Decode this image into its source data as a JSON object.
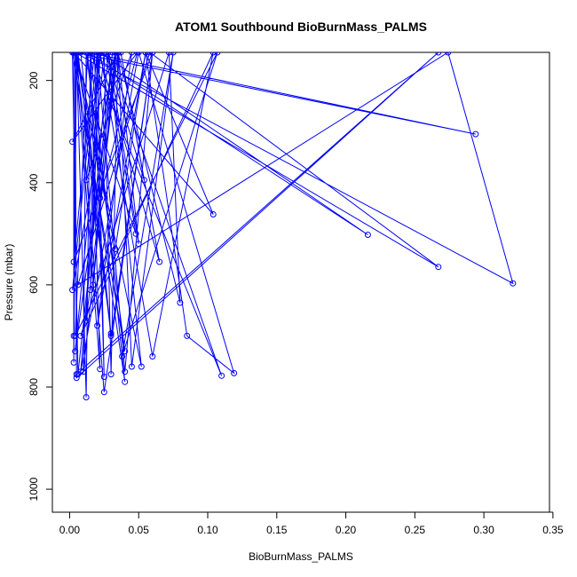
{
  "chart_data": {
    "type": "line",
    "title": "ATOM1 Southbound BioBurnMass_PALMS",
    "xlabel": "BioBurnMass_PALMS",
    "ylabel": "Pressure (mbar)",
    "xlim": [
      -0.0125,
      0.3475
    ],
    "ylim": [
      1045,
      145
    ],
    "y_reversed": true,
    "grid": false,
    "legend": "none",
    "x_ticks": [
      0.0,
      0.05,
      0.1,
      0.15,
      0.2,
      0.25,
      0.3,
      0.35
    ],
    "x_tick_labels": [
      "0.00",
      "0.05",
      "0.10",
      "0.15",
      "0.20",
      "0.25",
      "0.30",
      "0.35"
    ],
    "y_ticks": [
      200,
      400,
      600,
      800,
      1000
    ],
    "y_tick_labels": [
      "200",
      "400",
      "600",
      "800",
      "1000"
    ],
    "colors": {
      "series": "#0000ff",
      "axes": "#000000"
    },
    "series": [
      {
        "x": [
          0.006,
          0.03,
          0.06,
          0.04,
          0.02,
          0.015,
          0.022,
          0.012,
          0.045,
          0.02,
          0.055,
          0.085,
          0.119,
          0.05,
          0.008,
          0.028,
          0.05,
          0.035,
          0.03,
          0.025,
          0.004,
          0.034,
          0.01,
          0.012,
          0.04,
          0.002,
          0.006,
          0.031,
          0.017,
          0.033,
          0.002,
          0.02,
          0.025,
          0.018,
          0.003,
          0.06,
          0.025,
          0.005,
          0.052,
          0.028,
          0.11,
          0.015,
          0.04,
          0.005,
          0.012,
          0.015,
          0.022,
          0.004,
          0.033,
          0.055,
          0.104,
          0.003,
          0.048,
          0.026,
          0.054,
          0.037,
          0.065,
          0.021,
          0.012,
          0.035,
          0.002,
          0.049,
          0.022,
          0.013,
          0.216,
          0.022,
          0.06,
          0.104,
          0.008,
          0.072,
          0.08,
          0.035,
          0.045,
          0.075,
          0.038,
          0.107,
          0.004,
          0.013,
          0.294,
          0.004,
          0.267,
          0.058,
          0.006,
          0.274,
          0.321,
          0.008,
          0.03,
          0.004,
          0.005,
          0.267,
          0.005,
          0.004,
          0.003,
          0.003,
          0.003,
          0.005
        ],
        "y": [
          145,
          700,
          145,
          770,
          145,
          610,
          145,
          395,
          145,
          680,
          145,
          700,
          773,
          145,
          770,
          145,
          520,
          145,
          775,
          145,
          730,
          145,
          770,
          145,
          730,
          145,
          775,
          145,
          600,
          145,
          610,
          145,
          780,
          145,
          555,
          145,
          810,
          145,
          760,
          145,
          778,
          145,
          790,
          145,
          820,
          145,
          765,
          145,
          530,
          145,
          462,
          145,
          500,
          145,
          395,
          145,
          555,
          145,
          670,
          145,
          320,
          145,
          430,
          145,
          502,
          145,
          740,
          145,
          700,
          145,
          635,
          145,
          760,
          145,
          740,
          145,
          700,
          145,
          305,
          145,
          565,
          145,
          600,
          145,
          597,
          145,
          695,
          145,
          782,
          145,
          775,
          145,
          700,
          145,
          752,
          145
        ]
      }
    ]
  }
}
